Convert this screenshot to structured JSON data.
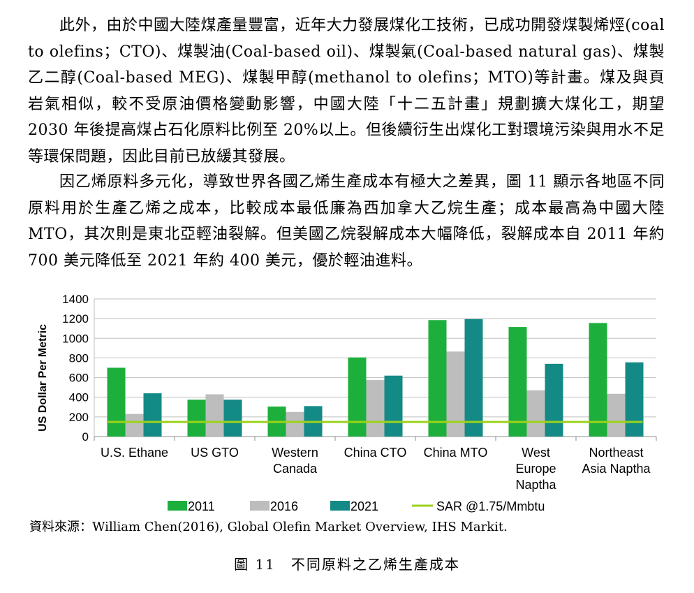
{
  "document": {
    "paragraph1": "此外，由於中國大陸煤產量豐富，近年大力發展煤化工技術，已成功開發煤製烯烴(coal to olefins；CTO)、煤製油(Coal-based oil)、煤製氣(Coal-based natural gas)、煤製乙二醇(Coal-based MEG)、煤製甲醇(methanol to olefins；MTO)等計畫。煤及與頁岩氣相似，較不受原油價格變動影響，中國大陸「十二五計畫」規劃擴大煤化工，期望 2030 年後提高煤占石化原料比例至 20%以上。但後續衍生出煤化工對環境污染與用水不足等環保問題，因此目前已放緩其發展。",
    "paragraph2": "因乙烯原料多元化，導致世界各國乙烯生產成本有極大之差異，圖 11 顯示各地區不同原料用於生產乙烯之成本，比較成本最低廉為西加拿大乙烷生產；成本最高為中國大陸 MTO，其次則是東北亞輕油裂解。但美國乙烷裂解成本大幅降低，裂解成本自 2011 年約 700 美元降低至 2021 年約 400 美元，優於輕油進料。",
    "source": "資料來源：William Chen(2016), Global Olefin Market Overview, IHS Markit.",
    "caption": "圖 11　不同原料之乙烯生產成本"
  },
  "chart_data": {
    "type": "bar",
    "title": "",
    "xlabel": "",
    "ylabel": "US Dollar Per Metric",
    "ylim": [
      0,
      1400
    ],
    "yticks": [
      "1400",
      "1200",
      "1000",
      "800",
      "600",
      "400",
      "200",
      "0"
    ],
    "grid": true,
    "legend_position": "bottom",
    "categories": [
      [
        "U.S. Ethane"
      ],
      [
        "US GTO"
      ],
      [
        "Western",
        "Canada"
      ],
      [
        "China CTO"
      ],
      [
        "China MTO"
      ],
      [
        "West",
        "Europe",
        "Naptha"
      ],
      [
        "Northeast",
        "Asia Naptha"
      ]
    ],
    "series": [
      {
        "name": "2011",
        "color": "#1DAF3C",
        "values": [
          700,
          375,
          305,
          805,
          1185,
          1115,
          1155
        ]
      },
      {
        "name": "2016",
        "color": "#BDBDBD",
        "values": [
          230,
          430,
          250,
          575,
          865,
          470,
          435
        ]
      },
      {
        "name": "2021",
        "color": "#138A85",
        "values": [
          440,
          375,
          310,
          620,
          1195,
          740,
          755
        ]
      }
    ],
    "reference_line": {
      "name": "SAR @1.75/Mmbtu",
      "color": "#9BD21B",
      "value": 148
    }
  }
}
